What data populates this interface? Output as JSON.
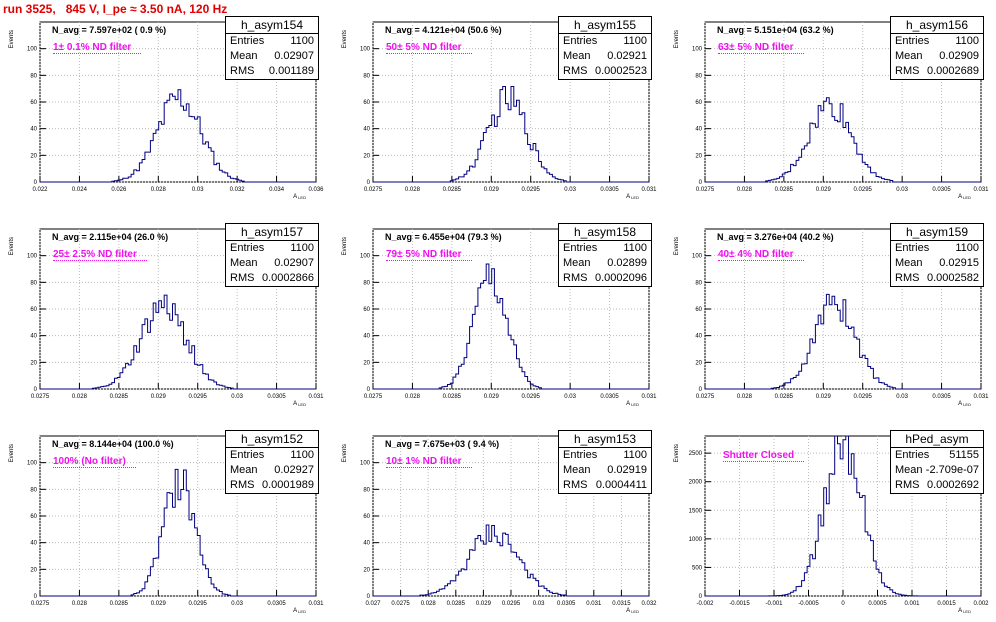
{
  "run_title": "run 3525,   845 V, I_pe ≈ 3.50 nA, 120 Hz",
  "y_axis_label": "Events",
  "x_axis_label": "A_LED",
  "chart_data": [
    {
      "type": "bar",
      "name": "h_asym154",
      "n_avg": "N_avg = 7.597e+02 ( 0.9 %)",
      "filter": "1± 0.1% ND filter",
      "entries": "1100",
      "mean": "0.02907",
      "rms": "0.001189",
      "xlim": [
        0.022,
        0.036
      ],
      "ylim": [
        0,
        120
      ],
      "xticks": [
        "0.022",
        "0.024",
        "0.026",
        "0.028",
        "0.03",
        "0.032",
        "0.034",
        "0.036"
      ],
      "yticks": [
        "0",
        "20",
        "40",
        "60",
        "80",
        "100"
      ],
      "peak": {
        "center": 0.02907,
        "sigma": 0.0011,
        "height": 63
      }
    },
    {
      "type": "bar",
      "name": "h_asym155",
      "n_avg": "N_avg = 4.121e+04 (50.6 %)",
      "filter": "50± 5% ND filter",
      "entries": "1100",
      "mean": "0.02921",
      "rms": "0.0002523",
      "xlim": [
        0.0275,
        0.031
      ],
      "ylim": [
        0,
        120
      ],
      "xticks": [
        "0.0275",
        "0.028",
        "0.0285",
        "0.029",
        "0.0295",
        "0.03",
        "0.0305",
        "0.031"
      ],
      "yticks": [
        "0",
        "20",
        "40",
        "60",
        "80",
        "100"
      ],
      "peak": {
        "center": 0.02921,
        "sigma": 0.00025,
        "height": 62
      }
    },
    {
      "type": "bar",
      "name": "h_asym156",
      "n_avg": "N_avg = 5.151e+04 (63.2 %)",
      "filter": "63± 5% ND filter",
      "entries": "1100",
      "mean": "0.02909",
      "rms": "0.0002689",
      "xlim": [
        0.0275,
        0.031
      ],
      "ylim": [
        0,
        120
      ],
      "xticks": [
        "0.0275",
        "0.028",
        "0.0285",
        "0.029",
        "0.0295",
        "0.03",
        "0.0305",
        "0.031"
      ],
      "yticks": [
        "0",
        "20",
        "40",
        "60",
        "80",
        "100"
      ],
      "peak": {
        "center": 0.02909,
        "sigma": 0.00027,
        "height": 58
      }
    },
    {
      "type": "bar",
      "name": "h_asym157",
      "n_avg": "N_avg = 2.115e+04 (26.0 %)",
      "filter": "25± 2.5% ND filter",
      "entries": "1100",
      "mean": "0.02907",
      "rms": "0.0002866",
      "xlim": [
        0.0275,
        0.031
      ],
      "ylim": [
        0,
        120
      ],
      "xticks": [
        "0.0275",
        "0.028",
        "0.0285",
        "0.029",
        "0.0295",
        "0.03",
        "0.0305",
        "0.031"
      ],
      "yticks": [
        "0",
        "20",
        "40",
        "60",
        "80",
        "100"
      ],
      "peak": {
        "center": 0.02907,
        "sigma": 0.00029,
        "height": 62
      }
    },
    {
      "type": "bar",
      "name": "h_asym158",
      "n_avg": "N_avg = 6.455e+04 (79.3 %)",
      "filter": "79± 5% ND filter",
      "entries": "1100",
      "mean": "0.02899",
      "rms": "0.0002096",
      "xlim": [
        0.0275,
        0.031
      ],
      "ylim": [
        0,
        120
      ],
      "xticks": [
        "0.0275",
        "0.028",
        "0.0285",
        "0.029",
        "0.0295",
        "0.03",
        "0.0305",
        "0.031"
      ],
      "yticks": [
        "0",
        "20",
        "40",
        "60",
        "80",
        "100"
      ],
      "peak": {
        "center": 0.02899,
        "sigma": 0.00021,
        "height": 84
      }
    },
    {
      "type": "bar",
      "name": "h_asym159",
      "n_avg": "N_avg = 3.276e+04 (40.2 %)",
      "filter": "40± 4% ND filter",
      "entries": "1100",
      "mean": "0.02915",
      "rms": "0.0002582",
      "xlim": [
        0.0275,
        0.031
      ],
      "ylim": [
        0,
        120
      ],
      "xticks": [
        "0.0275",
        "0.028",
        "0.0285",
        "0.029",
        "0.0295",
        "0.03",
        "0.0305",
        "0.031"
      ],
      "yticks": [
        "0",
        "20",
        "40",
        "60",
        "80",
        "100"
      ],
      "peak": {
        "center": 0.02915,
        "sigma": 0.00026,
        "height": 65
      }
    },
    {
      "type": "bar",
      "name": "h_asym152",
      "n_avg": "N_avg = 8.144e+04 (100.0 %)",
      "filter": "100% (No filter)",
      "entries": "1100",
      "mean": "0.02927",
      "rms": "0.0001989",
      "xlim": [
        0.0275,
        0.031
      ],
      "ylim": [
        0,
        120
      ],
      "xticks": [
        "0.0275",
        "0.028",
        "0.0285",
        "0.029",
        "0.0295",
        "0.03",
        "0.0305",
        "0.031"
      ],
      "yticks": [
        "0",
        "20",
        "40",
        "60",
        "80",
        "100"
      ],
      "peak": {
        "center": 0.02927,
        "sigma": 0.0002,
        "height": 87
      }
    },
    {
      "type": "bar",
      "name": "h_asym153",
      "n_avg": "N_avg = 7.675e+03 ( 9.4 %)",
      "filter": "10± 1% ND filter",
      "entries": "1100",
      "mean": "0.02919",
      "rms": "0.0004411",
      "xlim": [
        0.027,
        0.032
      ],
      "ylim": [
        0,
        120
      ],
      "xticks": [
        "0.027",
        "0.0275",
        "0.028",
        "0.0285",
        "0.029",
        "0.0295",
        "0.03",
        "0.0305",
        "0.031",
        "0.0315",
        "0.032"
      ],
      "yticks": [
        "0",
        "20",
        "40",
        "60",
        "80",
        "100"
      ],
      "peak": {
        "center": 0.02919,
        "sigma": 0.00044,
        "height": 48
      }
    },
    {
      "type": "bar",
      "name": "hPed_asym",
      "n_avg": "",
      "filter": "Shutter Closed",
      "entries": "51155",
      "mean": "-2.709e-07",
      "rms": "0.0002692",
      "xlim": [
        -0.002,
        0.002
      ],
      "ylim": [
        0,
        2800
      ],
      "xticks": [
        "-0.002",
        "-0.0015",
        "-0.001",
        "-0.0005",
        "0",
        "0.0005",
        "0.001",
        "0.0015",
        "0.002"
      ],
      "yticks": [
        "0",
        "500",
        "1000",
        "1500",
        "2000",
        "2500"
      ],
      "peak": {
        "center": 0.0,
        "sigma": 0.00027,
        "height": 2720
      }
    }
  ]
}
